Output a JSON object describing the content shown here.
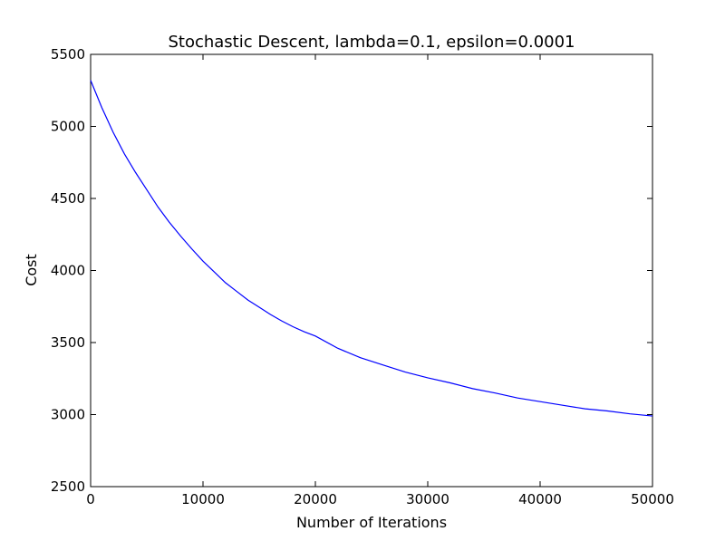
{
  "chart_data": {
    "type": "line",
    "title": "Stochastic Descent, lambda=0.1, epsilon=0.0001",
    "xlabel": "Number of Iterations",
    "ylabel": "Cost",
    "xlim": [
      0,
      50000
    ],
    "ylim": [
      2500,
      5500
    ],
    "xticks": [
      0,
      10000,
      20000,
      30000,
      40000,
      50000
    ],
    "yticks": [
      2500,
      3000,
      3500,
      4000,
      4500,
      5000,
      5500
    ],
    "grid": false,
    "line_color": "#0000ff",
    "series": [
      {
        "x": [
          0,
          1000,
          2000,
          3000,
          4000,
          5000,
          6000,
          7000,
          8000,
          9000,
          10000,
          11000,
          12000,
          13000,
          14000,
          15000,
          16000,
          17000,
          18000,
          19000,
          20000,
          22000,
          24000,
          26000,
          28000,
          30000,
          32000,
          34000,
          36000,
          38000,
          40000,
          42000,
          44000,
          46000,
          48000,
          50000
        ],
        "y": [
          5320,
          5130,
          4960,
          4810,
          4680,
          4560,
          4440,
          4335,
          4240,
          4150,
          4065,
          3990,
          3915,
          3855,
          3795,
          3745,
          3695,
          3650,
          3610,
          3575,
          3545,
          3460,
          3395,
          3345,
          3295,
          3255,
          3220,
          3180,
          3150,
          3115,
          3090,
          3065,
          3040,
          3025,
          3005,
          2990
        ]
      }
    ]
  }
}
